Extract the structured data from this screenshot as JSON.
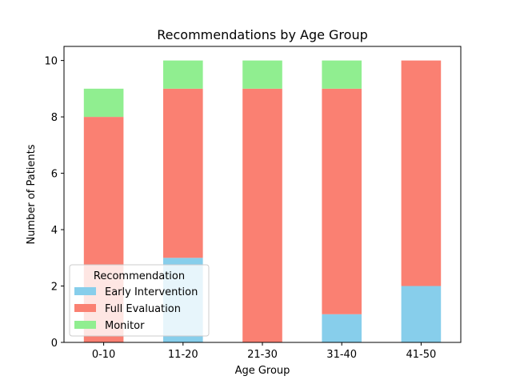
{
  "chart_data": {
    "type": "bar",
    "stacked": true,
    "title": "Recommendations by Age Group",
    "xlabel": "Age Group",
    "ylabel": "Number of Patients",
    "categories": [
      "0-10",
      "11-20",
      "21-30",
      "31-40",
      "41-50"
    ],
    "ylim": [
      0,
      10.5
    ],
    "yticks": [
      0,
      2,
      4,
      6,
      8,
      10
    ],
    "grid": false,
    "legend": {
      "title": "Recommendation",
      "placement": "lower-left"
    },
    "series": [
      {
        "name": "Early Intervention",
        "color": "#87ceeb",
        "values": [
          0,
          3,
          0,
          1,
          2
        ]
      },
      {
        "name": "Full Evaluation",
        "color": "#fa8072",
        "values": [
          8,
          6,
          9,
          8,
          8
        ]
      },
      {
        "name": "Monitor",
        "color": "#90ee90",
        "values": [
          1,
          1,
          1,
          1,
          0
        ]
      }
    ]
  }
}
